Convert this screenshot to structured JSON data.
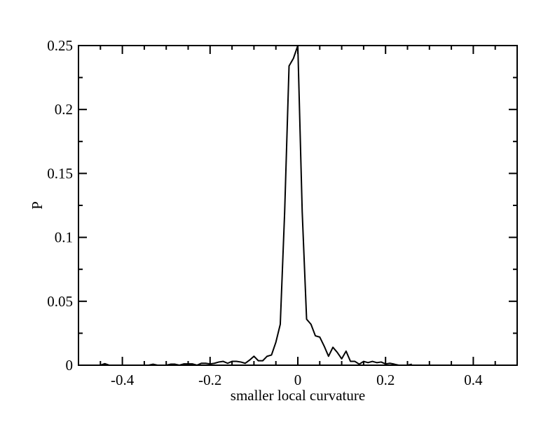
{
  "chart_data": {
    "type": "line",
    "title": "",
    "xlabel": "smaller local curvature",
    "ylabel": "P",
    "xlim": [
      -0.5,
      0.5
    ],
    "ylim": [
      0,
      0.25
    ],
    "grid": false,
    "legend": "none",
    "line_color": "#000000",
    "x_ticks": [
      -0.4,
      -0.2,
      0,
      0.2,
      0.4
    ],
    "x_tick_labels": [
      "-0.4",
      "-0.2",
      "0",
      "0.2",
      "0.4"
    ],
    "y_ticks": [
      0,
      0.05,
      0.1,
      0.15,
      0.2,
      0.25
    ],
    "y_tick_labels": [
      "0",
      "0.05",
      "0.1",
      "0.15",
      "0.2",
      "0.25"
    ],
    "series": [
      {
        "x": [
          -0.46,
          -0.45,
          -0.44,
          -0.43,
          -0.42,
          -0.41,
          -0.4,
          -0.39,
          -0.38,
          -0.37,
          -0.36,
          -0.35,
          -0.34,
          -0.33,
          -0.32,
          -0.31,
          -0.3,
          -0.29,
          -0.28,
          -0.27,
          -0.26,
          -0.25,
          -0.24,
          -0.23,
          -0.22,
          -0.21,
          -0.2,
          -0.19,
          -0.18,
          -0.17,
          -0.16,
          -0.15,
          -0.14,
          -0.13,
          -0.12,
          -0.11,
          -0.1,
          -0.09,
          -0.08,
          -0.07,
          -0.06,
          -0.05,
          -0.04,
          -0.03,
          -0.02,
          -0.01,
          0.0,
          0.01,
          0.02,
          0.03,
          0.04,
          0.05,
          0.06,
          0.07,
          0.08,
          0.09,
          0.1,
          0.11,
          0.12,
          0.13,
          0.14,
          0.15,
          0.16,
          0.17,
          0.18,
          0.19,
          0.2,
          0.21,
          0.22,
          0.23,
          0.24,
          0.25,
          0.26
        ],
        "y": [
          0,
          0,
          0.0012,
          0,
          0,
          0,
          0,
          0,
          0,
          0,
          0,
          0,
          0,
          0.0008,
          0,
          0,
          0,
          0.0008,
          0.0008,
          0,
          0.001,
          0.001,
          0.001,
          0,
          0.0015,
          0.0015,
          0.001,
          0.0015,
          0.0025,
          0.003,
          0.0015,
          0.003,
          0.003,
          0.0025,
          0.0015,
          0.004,
          0.007,
          0.0035,
          0.0035,
          0.007,
          0.008,
          0.018,
          0.032,
          0.12,
          0.234,
          0.24,
          0.25,
          0.12,
          0.036,
          0.032,
          0.023,
          0.022,
          0.015,
          0.007,
          0.014,
          0.01,
          0.005,
          0.011,
          0.003,
          0.003,
          0.0008,
          0.003,
          0.002,
          0.003,
          0.002,
          0.0025,
          0.001,
          0.0015,
          0.0008,
          0,
          0,
          0,
          0.0008
        ]
      }
    ]
  }
}
